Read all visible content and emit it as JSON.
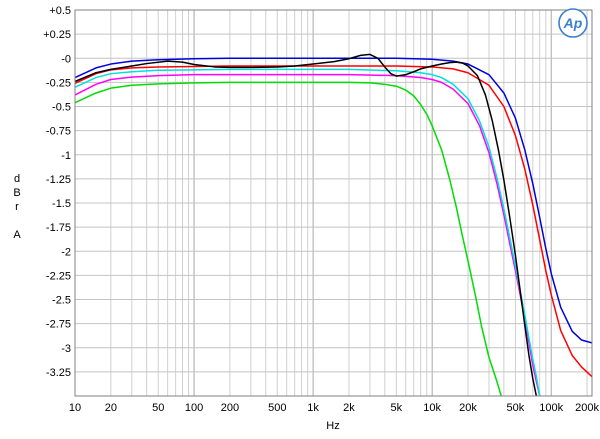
{
  "chart_data": {
    "type": "line",
    "title": "",
    "xlabel": "Hz",
    "ylabel_lines": [
      "d",
      "B",
      "r",
      "",
      "A"
    ],
    "x_scale": "log",
    "xlim": [
      10,
      220000
    ],
    "ylim": [
      -3.5,
      0.5
    ],
    "grid": true,
    "logo_text": "Ap",
    "y_ticks": [
      {
        "v": 0.5,
        "label": "+0.5"
      },
      {
        "v": 0.25,
        "label": "+0.25"
      },
      {
        "v": 0,
        "label": "-0"
      },
      {
        "v": -0.25,
        "label": "-0.25"
      },
      {
        "v": -0.5,
        "label": "-0.5"
      },
      {
        "v": -0.75,
        "label": "-0.75"
      },
      {
        "v": -1,
        "label": "-1"
      },
      {
        "v": -1.25,
        "label": "-1.25"
      },
      {
        "v": -1.5,
        "label": "-1.5"
      },
      {
        "v": -1.75,
        "label": "-1.75"
      },
      {
        "v": -2,
        "label": "-2"
      },
      {
        "v": -2.25,
        "label": "-2.25"
      },
      {
        "v": -2.5,
        "label": "-2.5"
      },
      {
        "v": -2.75,
        "label": "-2.75"
      },
      {
        "v": -3,
        "label": "-3"
      },
      {
        "v": -3.25,
        "label": "-3.25"
      }
    ],
    "x_ticks": [
      {
        "v": 10,
        "label": "10"
      },
      {
        "v": 20,
        "label": "20"
      },
      {
        "v": 50,
        "label": "50"
      },
      {
        "v": 100,
        "label": "100"
      },
      {
        "v": 200,
        "label": "200"
      },
      {
        "v": 500,
        "label": "500"
      },
      {
        "v": 1000,
        "label": "1k"
      },
      {
        "v": 2000,
        "label": "2k"
      },
      {
        "v": 5000,
        "label": "5k"
      },
      {
        "v": 10000,
        "label": "10k"
      },
      {
        "v": 20000,
        "label": "20k"
      },
      {
        "v": 50000,
        "label": "50k"
      },
      {
        "v": 100000,
        "label": "100k"
      },
      {
        "v": 200000,
        "label": "200k"
      }
    ],
    "series": [
      {
        "color": "#00dd00",
        "points": [
          [
            10,
            -0.46
          ],
          [
            15,
            -0.36
          ],
          [
            20,
            -0.31
          ],
          [
            30,
            -0.28
          ],
          [
            50,
            -0.265
          ],
          [
            100,
            -0.255
          ],
          [
            200,
            -0.25
          ],
          [
            500,
            -0.25
          ],
          [
            1000,
            -0.25
          ],
          [
            2000,
            -0.25
          ],
          [
            3000,
            -0.255
          ],
          [
            4000,
            -0.27
          ],
          [
            5000,
            -0.29
          ],
          [
            6000,
            -0.33
          ],
          [
            7000,
            -0.39
          ],
          [
            8000,
            -0.48
          ],
          [
            9000,
            -0.58
          ],
          [
            10000,
            -0.7
          ],
          [
            12000,
            -0.95
          ],
          [
            14000,
            -1.25
          ],
          [
            16000,
            -1.55
          ],
          [
            18000,
            -1.85
          ],
          [
            20000,
            -2.1
          ],
          [
            23000,
            -2.45
          ],
          [
            26000,
            -2.78
          ],
          [
            30000,
            -3.1
          ],
          [
            35000,
            -3.35
          ],
          [
            38000,
            -3.5
          ]
        ]
      },
      {
        "color": "#ff00ff",
        "points": [
          [
            10,
            -0.38
          ],
          [
            15,
            -0.27
          ],
          [
            20,
            -0.22
          ],
          [
            30,
            -0.195
          ],
          [
            50,
            -0.18
          ],
          [
            100,
            -0.17
          ],
          [
            200,
            -0.17
          ],
          [
            500,
            -0.17
          ],
          [
            1000,
            -0.17
          ],
          [
            2000,
            -0.17
          ],
          [
            5000,
            -0.18
          ],
          [
            8000,
            -0.2
          ],
          [
            10000,
            -0.22
          ],
          [
            12000,
            -0.25
          ],
          [
            15000,
            -0.32
          ],
          [
            20000,
            -0.47
          ],
          [
            25000,
            -0.7
          ],
          [
            30000,
            -0.98
          ],
          [
            35000,
            -1.3
          ],
          [
            40000,
            -1.62
          ],
          [
            45000,
            -1.93
          ],
          [
            50000,
            -2.2
          ],
          [
            55000,
            -2.46
          ],
          [
            60000,
            -2.7
          ],
          [
            65000,
            -2.95
          ],
          [
            70000,
            -3.18
          ],
          [
            75000,
            -3.35
          ],
          [
            80000,
            -3.5
          ]
        ]
      },
      {
        "color": "#00e0e0",
        "points": [
          [
            10,
            -0.3
          ],
          [
            15,
            -0.2
          ],
          [
            20,
            -0.16
          ],
          [
            30,
            -0.14
          ],
          [
            50,
            -0.125
          ],
          [
            100,
            -0.12
          ],
          [
            200,
            -0.115
          ],
          [
            500,
            -0.115
          ],
          [
            1000,
            -0.115
          ],
          [
            2000,
            -0.115
          ],
          [
            5000,
            -0.13
          ],
          [
            8000,
            -0.15
          ],
          [
            10000,
            -0.17
          ],
          [
            12000,
            -0.2
          ],
          [
            15000,
            -0.27
          ],
          [
            20000,
            -0.42
          ],
          [
            25000,
            -0.65
          ],
          [
            30000,
            -0.92
          ],
          [
            35000,
            -1.24
          ],
          [
            40000,
            -1.56
          ],
          [
            45000,
            -1.87
          ],
          [
            50000,
            -2.15
          ],
          [
            55000,
            -2.42
          ],
          [
            60000,
            -2.66
          ],
          [
            65000,
            -2.9
          ],
          [
            70000,
            -3.12
          ],
          [
            75000,
            -3.3
          ],
          [
            80000,
            -3.5
          ]
        ]
      },
      {
        "color": "#ff0000",
        "points": [
          [
            10,
            -0.26
          ],
          [
            15,
            -0.16
          ],
          [
            20,
            -0.12
          ],
          [
            30,
            -0.1
          ],
          [
            50,
            -0.09
          ],
          [
            100,
            -0.085
          ],
          [
            200,
            -0.08
          ],
          [
            500,
            -0.08
          ],
          [
            1000,
            -0.08
          ],
          [
            2000,
            -0.08
          ],
          [
            5000,
            -0.08
          ],
          [
            10000,
            -0.09
          ],
          [
            15000,
            -0.11
          ],
          [
            20000,
            -0.15
          ],
          [
            30000,
            -0.28
          ],
          [
            40000,
            -0.5
          ],
          [
            50000,
            -0.8
          ],
          [
            60000,
            -1.15
          ],
          [
            70000,
            -1.52
          ],
          [
            80000,
            -1.88
          ],
          [
            90000,
            -2.2
          ],
          [
            100000,
            -2.45
          ],
          [
            120000,
            -2.82
          ],
          [
            150000,
            -3.08
          ],
          [
            180000,
            -3.2
          ],
          [
            220000,
            -3.3
          ]
        ]
      },
      {
        "color": "#0000dd",
        "points": [
          [
            10,
            -0.2
          ],
          [
            15,
            -0.1
          ],
          [
            20,
            -0.06
          ],
          [
            30,
            -0.03
          ],
          [
            50,
            -0.015
          ],
          [
            100,
            -0.005
          ],
          [
            200,
            0.0
          ],
          [
            500,
            0.0
          ],
          [
            1000,
            0.0
          ],
          [
            2000,
            0.0
          ],
          [
            5000,
            0.0
          ],
          [
            10000,
            -0.01
          ],
          [
            15000,
            -0.03
          ],
          [
            20000,
            -0.06
          ],
          [
            30000,
            -0.17
          ],
          [
            40000,
            -0.36
          ],
          [
            50000,
            -0.62
          ],
          [
            60000,
            -0.95
          ],
          [
            70000,
            -1.3
          ],
          [
            80000,
            -1.65
          ],
          [
            90000,
            -1.97
          ],
          [
            100000,
            -2.23
          ],
          [
            120000,
            -2.58
          ],
          [
            150000,
            -2.83
          ],
          [
            180000,
            -2.92
          ],
          [
            220000,
            -2.95
          ]
        ]
      },
      {
        "color": "#000000",
        "points": [
          [
            10,
            -0.24
          ],
          [
            15,
            -0.15
          ],
          [
            20,
            -0.115
          ],
          [
            30,
            -0.08
          ],
          [
            40,
            -0.055
          ],
          [
            60,
            -0.03
          ],
          [
            80,
            -0.04
          ],
          [
            100,
            -0.065
          ],
          [
            150,
            -0.09
          ],
          [
            200,
            -0.095
          ],
          [
            300,
            -0.095
          ],
          [
            500,
            -0.09
          ],
          [
            700,
            -0.08
          ],
          [
            1000,
            -0.06
          ],
          [
            1500,
            -0.035
          ],
          [
            2000,
            -0.005
          ],
          [
            2500,
            0.03
          ],
          [
            3000,
            0.04
          ],
          [
            3500,
            0.0
          ],
          [
            4000,
            -0.09
          ],
          [
            4500,
            -0.16
          ],
          [
            5000,
            -0.185
          ],
          [
            6000,
            -0.17
          ],
          [
            7000,
            -0.14
          ],
          [
            8000,
            -0.11
          ],
          [
            10000,
            -0.08
          ],
          [
            12000,
            -0.06
          ],
          [
            14000,
            -0.045
          ],
          [
            16000,
            -0.04
          ],
          [
            18000,
            -0.05
          ],
          [
            20000,
            -0.08
          ],
          [
            24000,
            -0.18
          ],
          [
            28000,
            -0.38
          ],
          [
            32000,
            -0.65
          ],
          [
            36000,
            -0.95
          ],
          [
            40000,
            -1.26
          ],
          [
            45000,
            -1.66
          ],
          [
            50000,
            -2.04
          ],
          [
            55000,
            -2.42
          ],
          [
            60000,
            -2.77
          ],
          [
            65000,
            -3.08
          ],
          [
            70000,
            -3.32
          ],
          [
            75000,
            -3.5
          ]
        ]
      }
    ]
  }
}
